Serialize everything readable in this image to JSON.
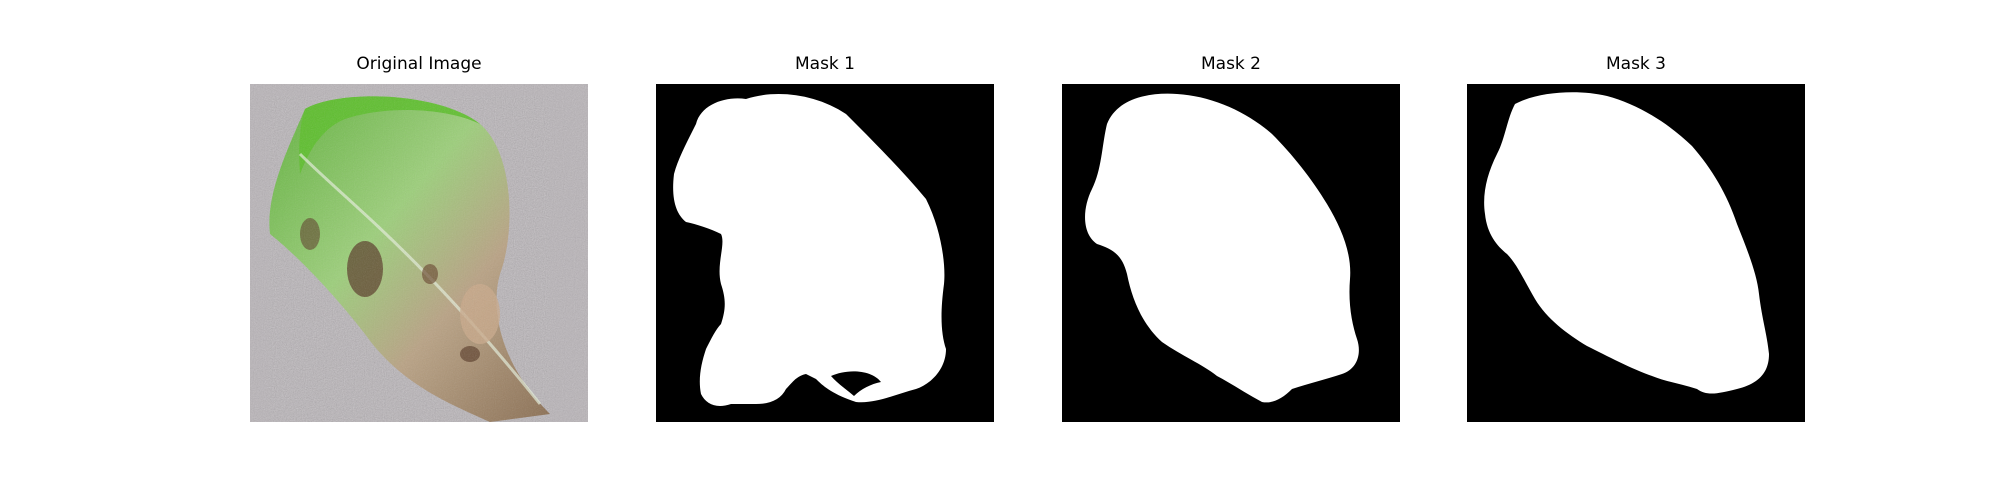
{
  "panels": [
    {
      "title": "Original Image",
      "kind": "photo",
      "icon": "leaf-image"
    },
    {
      "title": "Mask 1",
      "kind": "mask",
      "icon": "mask-image"
    },
    {
      "title": "Mask 2",
      "kind": "mask",
      "icon": "mask-image"
    },
    {
      "title": "Mask 3",
      "kind": "mask",
      "icon": "mask-image"
    }
  ],
  "colors": {
    "background": "#ffffff",
    "mask_bg": "#000000",
    "mask_fg": "#ffffff",
    "photo_bg": "#b9b4b8",
    "leaf_green": "#7cc64b",
    "leaf_brown": "#b99d7a"
  }
}
